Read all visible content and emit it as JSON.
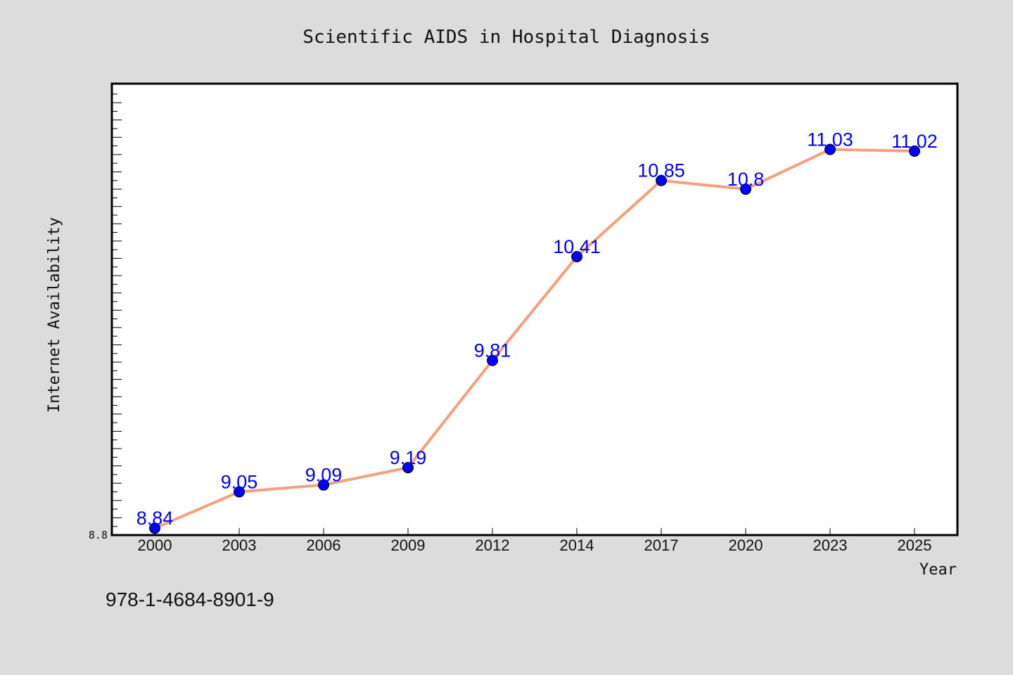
{
  "chart_data": {
    "type": "line",
    "title": "Scientific AIDS in Hospital Diagnosis",
    "xlabel": "Year",
    "ylabel": "Internet Availability",
    "categories": [
      "2000",
      "2003",
      "2006",
      "2009",
      "2012",
      "2014",
      "2017",
      "2020",
      "2023",
      "2025"
    ],
    "series": [
      {
        "values": [
          8.84,
          9.05,
          9.09,
          9.19,
          9.81,
          10.41,
          10.85,
          10.8,
          11.03,
          11.02
        ]
      }
    ],
    "data_labels": [
      "8.84",
      "9.05",
      "9.09",
      "9.19",
      "9.81",
      "10.41",
      "10.85",
      "10.8",
      "11.03",
      "11.02"
    ],
    "ytick_labels": [
      "8.8"
    ],
    "ylim": [
      8.8,
      11.41
    ],
    "grid": false,
    "line_color": "#f4a07e",
    "marker_color": "#0000ff",
    "label_color": "#0000ff"
  },
  "footer": {
    "isbn": "978-1-4684-8901-9"
  }
}
